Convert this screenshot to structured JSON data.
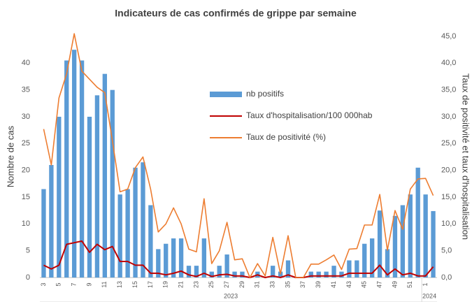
{
  "chart_data": {
    "type": "bar",
    "title": "Indicateurs de cas confirmés de grippe par semaine",
    "y_label": "Nombre de cas",
    "y2_label": "Taux de positivité et taux d'hospitalisation",
    "categories": [
      "3",
      null,
      "5",
      null,
      "7",
      null,
      "9",
      null,
      "11",
      null,
      "13",
      null,
      "15",
      null,
      "17",
      null,
      "19",
      null,
      "21",
      null,
      "23",
      null,
      "25",
      null,
      "27",
      null,
      "29",
      null,
      "31",
      null,
      "33",
      null,
      "35",
      null,
      "37",
      null,
      "39",
      null,
      "41",
      null,
      "43",
      null,
      "45",
      null,
      "47",
      null,
      "49",
      null,
      "51",
      null,
      "1",
      null
    ],
    "year_labels": [
      "2023",
      "2024"
    ],
    "series": [
      {
        "name": "nb positifs",
        "type": "bar",
        "color": "#5b9bd5",
        "values": [
          16.5,
          21,
          30,
          40.5,
          42.5,
          40.5,
          30,
          34,
          38,
          35,
          15.5,
          16.5,
          20.5,
          21.5,
          13.5,
          5.3,
          6.3,
          7.3,
          7.3,
          2.2,
          2.2,
          7.3,
          1.1,
          2.2,
          4.3,
          1.1,
          1.1,
          0,
          1.1,
          0,
          2.2,
          1.1,
          3.2,
          0,
          0,
          1.1,
          1.1,
          1.1,
          2.2,
          1.1,
          3.2,
          3.2,
          6.3,
          7.3,
          12.5,
          5.3,
          11.5,
          13.5,
          15.5,
          20.5,
          15.5,
          12.4
        ]
      },
      {
        "name": "Taux d'hospitalisation/100 000hab",
        "type": "line",
        "axis": "y2",
        "color": "#c00000",
        "values": [
          2.3,
          1.6,
          2.3,
          6.2,
          6.5,
          6.8,
          4.7,
          6.2,
          5.2,
          5.8,
          3,
          3,
          2.3,
          2.3,
          0.8,
          0.8,
          0.5,
          0.8,
          1.2,
          0.5,
          0.2,
          0.8,
          0.2,
          0.5,
          0.6,
          0.3,
          0.3,
          0,
          0.5,
          0,
          0.3,
          0,
          0.5,
          0,
          0,
          0.3,
          0.3,
          0.3,
          0.3,
          0.3,
          0.8,
          0.8,
          0.8,
          0.8,
          2.3,
          0.5,
          1.6,
          0.5,
          0.8,
          0.3,
          0.3,
          2
        ]
      },
      {
        "name": "Taux de positivité (%)",
        "type": "line",
        "axis": "y2",
        "color": "#ed7d31",
        "values": [
          27.7,
          21,
          33.5,
          38,
          45.5,
          38.5,
          37,
          35.5,
          34.5,
          25.5,
          16,
          16.5,
          20.5,
          22.5,
          16.5,
          8.5,
          10,
          13,
          10,
          5.3,
          4.8,
          14.7,
          2.6,
          5,
          10.3,
          3.3,
          3.5,
          0,
          2.6,
          0.3,
          7.5,
          0.7,
          7.8,
          0,
          0,
          2.5,
          2.5,
          3.3,
          4.2,
          1.5,
          5.3,
          5.4,
          9.8,
          9.8,
          15.5,
          5.1,
          12.5,
          9,
          16.5,
          18.4,
          18.5,
          15.3
        ]
      }
    ],
    "ylim": [
      0,
      45
    ],
    "yticks": [
      0,
      5,
      10,
      15,
      20,
      25,
      30,
      35,
      40
    ],
    "y2lim": [
      0,
      45
    ],
    "y2ticks": [
      {
        "value": 0,
        "label": "0,0"
      },
      {
        "value": 5,
        "label": "5,0"
      },
      {
        "value": 10,
        "label": "10,0"
      },
      {
        "value": 15,
        "label": "15,0"
      },
      {
        "value": 20,
        "label": "20,0"
      },
      {
        "value": 25,
        "label": "25,0"
      },
      {
        "value": 30,
        "label": "30,0"
      },
      {
        "value": 35,
        "label": "35,0"
      },
      {
        "value": 40,
        "label": "40,0"
      },
      {
        "value": 45,
        "label": "45,0"
      }
    ],
    "grid": false
  }
}
